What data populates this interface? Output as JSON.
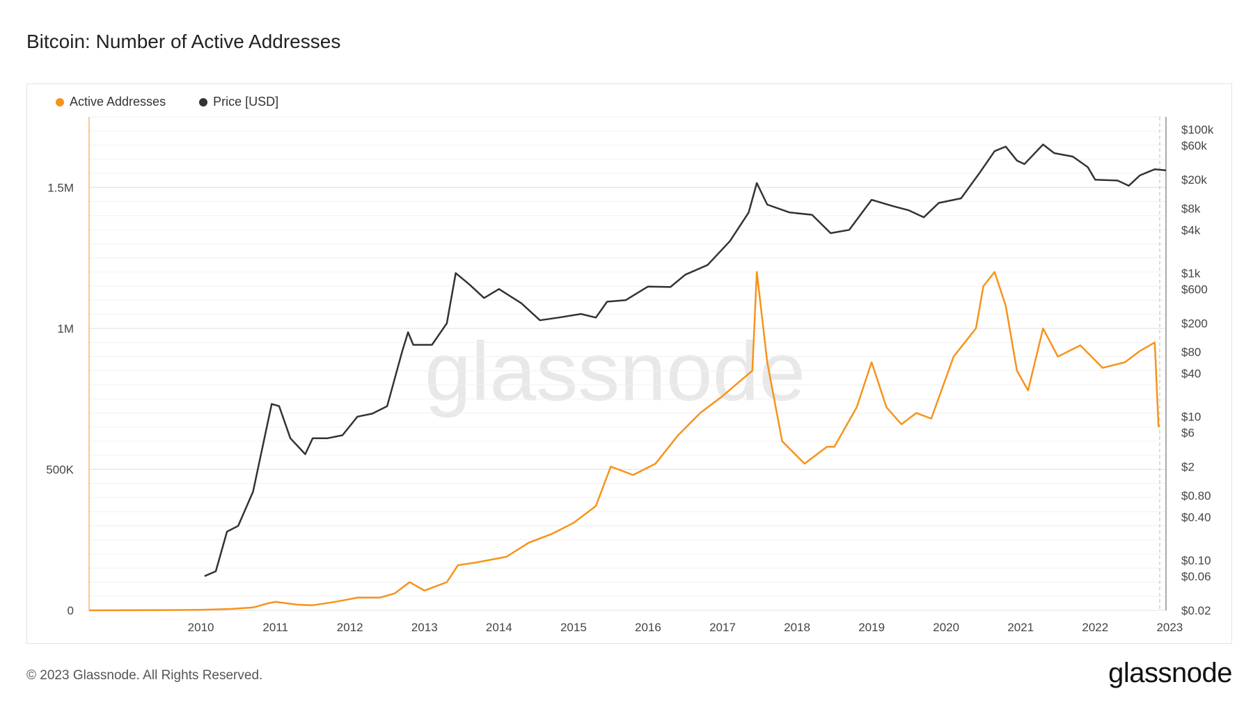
{
  "header": {
    "title": "Bitcoin: Number of Active Addresses"
  },
  "legend": [
    {
      "label": "Active Addresses",
      "color": "#f7931a"
    },
    {
      "label": "Price [USD]",
      "color": "#333333"
    }
  ],
  "watermark": "glassnode",
  "footer": {
    "copyright": "© 2023 Glassnode. All Rights Reserved.",
    "brand": "glassnode"
  },
  "chart_data": {
    "type": "line",
    "title": "Bitcoin: Number of Active Addresses",
    "x_ticks": [
      "2010",
      "2011",
      "2012",
      "2013",
      "2014",
      "2015",
      "2016",
      "2017",
      "2018",
      "2019",
      "2020",
      "2021",
      "2022",
      "2023"
    ],
    "y_left_ticks": [
      {
        "value": 0,
        "label": "0"
      },
      {
        "value": 500000,
        "label": "500K"
      },
      {
        "value": 1000000,
        "label": "1M"
      },
      {
        "value": 1500000,
        "label": "1.5M"
      }
    ],
    "y_right_ticks": [
      {
        "value": 100000,
        "label": "$100k"
      },
      {
        "value": 60000,
        "label": "$60k"
      },
      {
        "value": 20000,
        "label": "$20k"
      },
      {
        "value": 8000,
        "label": "$8k"
      },
      {
        "value": 4000,
        "label": "$4k"
      },
      {
        "value": 1000,
        "label": "$1k"
      },
      {
        "value": 600,
        "label": "$600"
      },
      {
        "value": 200,
        "label": "$200"
      },
      {
        "value": 80,
        "label": "$80"
      },
      {
        "value": 40,
        "label": "$40"
      },
      {
        "value": 10,
        "label": "$10"
      },
      {
        "value": 6,
        "label": "$6"
      },
      {
        "value": 2,
        "label": "$2"
      },
      {
        "value": 0.8,
        "label": "$0.80"
      },
      {
        "value": 0.4,
        "label": "$0.40"
      },
      {
        "value": 0.1,
        "label": "$0.10"
      },
      {
        "value": 0.06,
        "label": "$0.06"
      },
      {
        "value": 0.02,
        "label": "$0.02"
      }
    ],
    "y_left_range": [
      0,
      1750000
    ],
    "y_right_scale": "log",
    "x_range": [
      2009.0,
      2023.45
    ],
    "series": [
      {
        "name": "Active Addresses",
        "color": "#f7931a",
        "points": [
          [
            2009.0,
            0
          ],
          [
            2010.0,
            1000
          ],
          [
            2010.5,
            2000
          ],
          [
            2010.9,
            5000
          ],
          [
            2011.2,
            10000
          ],
          [
            2011.4,
            25000
          ],
          [
            2011.5,
            30000
          ],
          [
            2011.8,
            20000
          ],
          [
            2012.0,
            18000
          ],
          [
            2012.3,
            30000
          ],
          [
            2012.6,
            45000
          ],
          [
            2012.9,
            45000
          ],
          [
            2013.1,
            60000
          ],
          [
            2013.3,
            100000
          ],
          [
            2013.5,
            70000
          ],
          [
            2013.8,
            100000
          ],
          [
            2013.95,
            160000
          ],
          [
            2014.2,
            170000
          ],
          [
            2014.6,
            190000
          ],
          [
            2014.9,
            240000
          ],
          [
            2015.2,
            270000
          ],
          [
            2015.5,
            310000
          ],
          [
            2015.8,
            370000
          ],
          [
            2016.0,
            510000
          ],
          [
            2016.3,
            480000
          ],
          [
            2016.6,
            520000
          ],
          [
            2016.9,
            620000
          ],
          [
            2017.2,
            700000
          ],
          [
            2017.5,
            760000
          ],
          [
            2017.9,
            850000
          ],
          [
            2017.96,
            1200000
          ],
          [
            2018.1,
            880000
          ],
          [
            2018.3,
            600000
          ],
          [
            2018.6,
            520000
          ],
          [
            2018.9,
            580000
          ],
          [
            2019.0,
            580000
          ],
          [
            2019.3,
            720000
          ],
          [
            2019.5,
            880000
          ],
          [
            2019.7,
            720000
          ],
          [
            2019.9,
            660000
          ],
          [
            2020.1,
            700000
          ],
          [
            2020.3,
            680000
          ],
          [
            2020.6,
            900000
          ],
          [
            2020.9,
            1000000
          ],
          [
            2021.0,
            1150000
          ],
          [
            2021.15,
            1200000
          ],
          [
            2021.3,
            1080000
          ],
          [
            2021.45,
            850000
          ],
          [
            2021.6,
            780000
          ],
          [
            2021.8,
            1000000
          ],
          [
            2022.0,
            900000
          ],
          [
            2022.3,
            940000
          ],
          [
            2022.6,
            860000
          ],
          [
            2022.9,
            880000
          ],
          [
            2023.1,
            920000
          ],
          [
            2023.3,
            950000
          ],
          [
            2023.35,
            650000
          ]
        ]
      },
      {
        "name": "Price [USD]",
        "color": "#333333",
        "points": [
          [
            2010.55,
            0.06
          ],
          [
            2010.7,
            0.07
          ],
          [
            2010.85,
            0.25
          ],
          [
            2011.0,
            0.3
          ],
          [
            2011.2,
            0.9
          ],
          [
            2011.45,
            15
          ],
          [
            2011.55,
            14
          ],
          [
            2011.7,
            5
          ],
          [
            2011.9,
            3
          ],
          [
            2012.0,
            5
          ],
          [
            2012.2,
            5
          ],
          [
            2012.4,
            5.5
          ],
          [
            2012.6,
            10
          ],
          [
            2012.8,
            11
          ],
          [
            2013.0,
            14
          ],
          [
            2013.2,
            80
          ],
          [
            2013.28,
            150
          ],
          [
            2013.35,
            100
          ],
          [
            2013.6,
            100
          ],
          [
            2013.8,
            200
          ],
          [
            2013.92,
            1000
          ],
          [
            2014.1,
            700
          ],
          [
            2014.3,
            450
          ],
          [
            2014.5,
            600
          ],
          [
            2014.8,
            380
          ],
          [
            2015.05,
            220
          ],
          [
            2015.3,
            240
          ],
          [
            2015.6,
            270
          ],
          [
            2015.8,
            240
          ],
          [
            2015.95,
            400
          ],
          [
            2016.2,
            420
          ],
          [
            2016.5,
            650
          ],
          [
            2016.8,
            640
          ],
          [
            2017.0,
            950
          ],
          [
            2017.3,
            1300
          ],
          [
            2017.6,
            2800
          ],
          [
            2017.85,
            7000
          ],
          [
            2017.96,
            18000
          ],
          [
            2018.1,
            9000
          ],
          [
            2018.4,
            7000
          ],
          [
            2018.7,
            6500
          ],
          [
            2018.95,
            3600
          ],
          [
            2019.2,
            4000
          ],
          [
            2019.5,
            10500
          ],
          [
            2019.8,
            8500
          ],
          [
            2020.0,
            7500
          ],
          [
            2020.2,
            6000
          ],
          [
            2020.4,
            9500
          ],
          [
            2020.7,
            11000
          ],
          [
            2020.95,
            25000
          ],
          [
            2021.15,
            50000
          ],
          [
            2021.3,
            58000
          ],
          [
            2021.45,
            37000
          ],
          [
            2021.55,
            33000
          ],
          [
            2021.8,
            62000
          ],
          [
            2021.95,
            47000
          ],
          [
            2022.2,
            42000
          ],
          [
            2022.4,
            30000
          ],
          [
            2022.5,
            20000
          ],
          [
            2022.8,
            19500
          ],
          [
            2022.95,
            16500
          ],
          [
            2023.1,
            23000
          ],
          [
            2023.3,
            28000
          ],
          [
            2023.45,
            27000
          ]
        ]
      }
    ]
  }
}
